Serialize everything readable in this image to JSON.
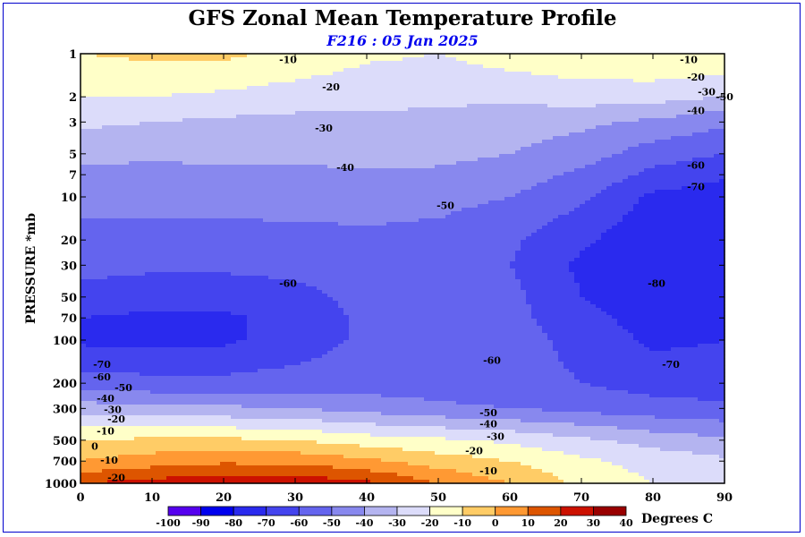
{
  "chart_data": {
    "type": "heatmap",
    "title": "GFS Zonal Mean Temperature Profile",
    "subtitle": "F216 : 05 Jan 2025",
    "ylabel": "PRESSURE *mb",
    "xlabel": "",
    "x_ticks": [
      0,
      10,
      20,
      30,
      40,
      50,
      60,
      70,
      80,
      90
    ],
    "xlim": [
      0,
      90
    ],
    "y_scale": "log",
    "y_ticks": [
      1,
      2,
      3,
      5,
      7,
      10,
      20,
      30,
      50,
      70,
      100,
      200,
      300,
      500,
      700,
      1000
    ],
    "ylim": [
      1000,
      1
    ],
    "x": [
      0,
      10,
      20,
      30,
      40,
      50,
      60,
      70,
      80,
      90
    ],
    "y": [
      1,
      2,
      3,
      5,
      7,
      10,
      20,
      30,
      50,
      70,
      100,
      200,
      300,
      500,
      700,
      1000
    ],
    "z": [
      [
        -10,
        -8,
        -8,
        -12,
        -18,
        -20,
        -15,
        -12,
        -10,
        -10
      ],
      [
        -20,
        -20,
        -22,
        -25,
        -27,
        -28,
        -28,
        -25,
        -26,
        -30
      ],
      [
        -28,
        -30,
        -32,
        -33,
        -32,
        -33,
        -35,
        -38,
        -42,
        -48
      ],
      [
        -37,
        -38,
        -38,
        -38,
        -37,
        -37,
        -40,
        -45,
        -55,
        -60
      ],
      [
        -43,
        -43,
        -42,
        -42,
        -41,
        -42,
        -45,
        -52,
        -63,
        -68
      ],
      [
        -47,
        -47,
        -47,
        -46,
        -46,
        -47,
        -50,
        -58,
        -72,
        -76
      ],
      [
        -53,
        -53,
        -53,
        -53,
        -52,
        -53,
        -58,
        -68,
        -78,
        -79
      ],
      [
        -57,
        -58,
        -58,
        -57,
        -55,
        -55,
        -60,
        -72,
        -80,
        -79
      ],
      [
        -63,
        -66,
        -66,
        -63,
        -57,
        -55,
        -57,
        -70,
        -78,
        -77
      ],
      [
        -70,
        -72,
        -72,
        -66,
        -58,
        -56,
        -57,
        -66,
        -75,
        -74
      ],
      [
        -72,
        -73,
        -72,
        -65,
        -58,
        -56,
        -56,
        -63,
        -72,
        -70
      ],
      [
        -55,
        -57,
        -57,
        -56,
        -55,
        -55,
        -56,
        -60,
        -64,
        -65
      ],
      [
        -35,
        -37,
        -38,
        -40,
        -44,
        -48,
        -50,
        -53,
        -56,
        -58
      ],
      [
        -10,
        -8,
        -8,
        -10,
        -15,
        -18,
        -22,
        -28,
        -34,
        -38
      ],
      [
        0,
        5,
        8,
        7,
        2,
        -5,
        -10,
        -18,
        -24,
        -28
      ],
      [
        20,
        24,
        27,
        27,
        22,
        10,
        0,
        -12,
        -20,
        -25
      ]
    ],
    "contour_labels": [
      {
        "text": "-10",
        "x": 29,
        "y": 1.1
      },
      {
        "text": "-20",
        "x": 35,
        "y": 1.7
      },
      {
        "text": "-30",
        "x": 34,
        "y": 3.3
      },
      {
        "text": "-40",
        "x": 37,
        "y": 6.2
      },
      {
        "text": "-50",
        "x": 51,
        "y": 11.5
      },
      {
        "text": "-60",
        "x": 29,
        "y": 40
      },
      {
        "text": "-80",
        "x": 80.5,
        "y": 40
      },
      {
        "text": "-60",
        "x": 57.5,
        "y": 138
      },
      {
        "text": "-70",
        "x": 82.5,
        "y": 148
      },
      {
        "text": "-70",
        "x": 3,
        "y": 148
      },
      {
        "text": "-60",
        "x": 3,
        "y": 180
      },
      {
        "text": "-50",
        "x": 6,
        "y": 215
      },
      {
        "text": "-40",
        "x": 3.5,
        "y": 255
      },
      {
        "text": "-30",
        "x": 4.5,
        "y": 305
      },
      {
        "text": "-20",
        "x": 5,
        "y": 355
      },
      {
        "text": "-10",
        "x": 3.5,
        "y": 430
      },
      {
        "text": "0",
        "x": 2,
        "y": 550
      },
      {
        "text": "-10",
        "x": 4,
        "y": 690
      },
      {
        "text": "-20",
        "x": 5,
        "y": 910
      },
      {
        "text": "-50",
        "x": 57,
        "y": 320
      },
      {
        "text": "-40",
        "x": 57,
        "y": 385
      },
      {
        "text": "-30",
        "x": 58,
        "y": 470
      },
      {
        "text": "-20",
        "x": 55,
        "y": 590
      },
      {
        "text": "-10",
        "x": 57,
        "y": 820
      },
      {
        "text": "-10",
        "x": 85,
        "y": 1.1
      },
      {
        "text": "-20",
        "x": 86,
        "y": 1.45
      },
      {
        "text": "-30",
        "x": 87.5,
        "y": 1.85
      },
      {
        "text": "-40",
        "x": 86,
        "y": 2.5
      },
      {
        "text": "-50",
        "x": 90,
        "y": 2.0
      },
      {
        "text": "-60",
        "x": 86,
        "y": 6.0
      },
      {
        "text": "-70",
        "x": 86,
        "y": 8.5
      }
    ],
    "colorbar": {
      "levels": [
        "-100",
        "-90",
        "-80",
        "-70",
        "-60",
        "-50",
        "-40",
        "-30",
        "-20",
        "-10",
        "0",
        "10",
        "20",
        "30",
        "40"
      ],
      "colors": [
        "#8800cc",
        "#5500ee",
        "#0000ee",
        "#2a2aee",
        "#4444ee",
        "#6464ee",
        "#8888ee",
        "#b4b4f0",
        "#dcdcfa",
        "#ffffc8",
        "#ffcc66",
        "#ff9933",
        "#dd5500",
        "#cc1100",
        "#990000",
        "#886622"
      ],
      "unit_label": "Degrees C"
    }
  }
}
